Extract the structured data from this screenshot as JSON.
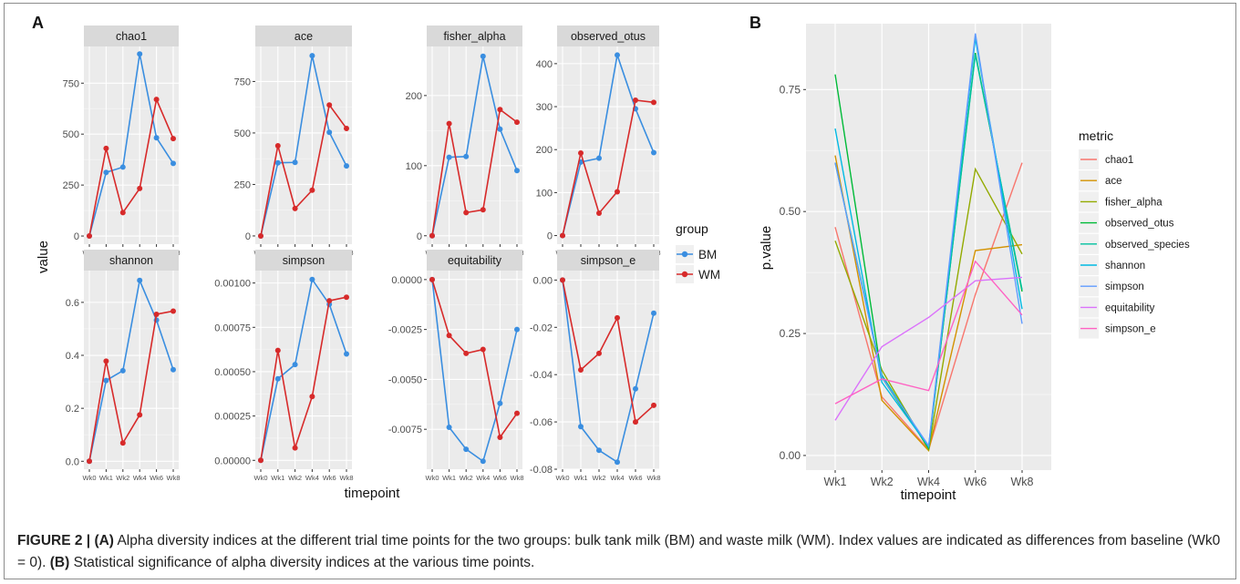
{
  "panel_a_label": "A",
  "panel_b_label": "B",
  "caption": {
    "fig_label": "FIGURE 2 |",
    "part_a_label": "(A)",
    "part_a_text": "Alpha diversity indices at the different trial time points for the two groups: bulk tank milk (BM) and waste milk (WM). Index values are indicated as differences from baseline (Wk0 = 0).",
    "part_b_label": "(B)",
    "part_b_text": "Statistical significance of alpha diversity indices at the various time points."
  },
  "chart_data": [
    {
      "type": "line",
      "panel": "A",
      "xlabel": "timepoint",
      "ylabel": "value",
      "legend_title": "group",
      "legend_position": "right",
      "grid": true,
      "categories": [
        "Wk0",
        "Wk1",
        "Wk2",
        "Wk4",
        "Wk6",
        "Wk8"
      ],
      "series_meta": [
        {
          "name": "BM",
          "color": "#3a8ee0"
        },
        {
          "name": "WM",
          "color": "#d72a2a"
        }
      ],
      "facets": [
        {
          "title": "chao1",
          "ylim": [
            -40,
            930
          ],
          "ticks": [
            0,
            250,
            500,
            750
          ],
          "tick_labels": [
            "0",
            "250",
            "500",
            "750"
          ],
          "series": [
            {
              "name": "BM",
              "values": [
                0,
                312,
                338,
                893,
                482,
                356
              ]
            },
            {
              "name": "WM",
              "values": [
                0,
                430,
                115,
                233,
                670,
                478
              ]
            }
          ]
        },
        {
          "title": "ace",
          "ylim": [
            -40,
            920
          ],
          "ticks": [
            0,
            250,
            500,
            750
          ],
          "tick_labels": [
            "0",
            "250",
            "500",
            "750"
          ],
          "series": [
            {
              "name": "BM",
              "values": [
                0,
                355,
                357,
                875,
                503,
                340
              ]
            },
            {
              "name": "WM",
              "values": [
                0,
                438,
                133,
                222,
                636,
                522
              ]
            }
          ]
        },
        {
          "title": "fisher_alpha",
          "ylim": [
            -12,
            270
          ],
          "ticks": [
            0,
            100,
            200
          ],
          "tick_labels": [
            "0",
            "100",
            "200"
          ],
          "series": [
            {
              "name": "BM",
              "values": [
                0,
                112,
                113,
                256,
                152,
                93
              ]
            },
            {
              "name": "WM",
              "values": [
                0,
                160,
                33,
                37,
                180,
                162
              ]
            }
          ]
        },
        {
          "title": "observed_otus",
          "ylim": [
            -20,
            440
          ],
          "ticks": [
            0,
            100,
            200,
            300,
            400
          ],
          "tick_labels": [
            "0",
            "100",
            "200",
            "300",
            "400"
          ],
          "series": [
            {
              "name": "BM",
              "values": [
                0,
                171,
                180,
                420,
                295,
                193
              ]
            },
            {
              "name": "WM",
              "values": [
                0,
                192,
                52,
                102,
                315,
                310
              ]
            }
          ]
        },
        {
          "title": "shannon",
          "ylim": [
            -0.03,
            0.72
          ],
          "ticks": [
            0,
            0.2,
            0.4,
            0.6
          ],
          "tick_labels": [
            "0.0",
            "0.2",
            "0.4",
            "0.6"
          ],
          "series": [
            {
              "name": "BM",
              "values": [
                0,
                0.305,
                0.342,
                0.683,
                0.533,
                0.346
              ]
            },
            {
              "name": "WM",
              "values": [
                0,
                0.378,
                0.069,
                0.175,
                0.555,
                0.567
              ]
            }
          ]
        },
        {
          "title": "simpson",
          "ylim": [
            -5e-05,
            0.00107
          ],
          "ticks": [
            0,
            0.00025,
            0.0005,
            0.00075,
            0.001
          ],
          "tick_labels": [
            "0.00000",
            "0.00025",
            "0.00050",
            "0.00075",
            "0.00100"
          ],
          "series": [
            {
              "name": "BM",
              "values": [
                0,
                0.00046,
                0.00054,
                0.00102,
                0.00088,
                0.0006
              ]
            },
            {
              "name": "WM",
              "values": [
                0,
                0.00062,
                7e-05,
                0.00036,
                0.0009,
                0.00092
              ]
            }
          ]
        },
        {
          "title": "equitability",
          "ylim": [
            -0.0095,
            0.00045
          ],
          "ticks": [
            0,
            -0.0025,
            -0.005,
            -0.0075
          ],
          "tick_labels": [
            "0.0000",
            "-0.0025",
            "-0.0050",
            "-0.0075"
          ],
          "series": [
            {
              "name": "BM",
              "values": [
                0,
                -0.0074,
                -0.0085,
                -0.0091,
                -0.0062,
                -0.0025
              ]
            },
            {
              "name": "WM",
              "values": [
                0,
                -0.0028,
                -0.0037,
                -0.0035,
                -0.0079,
                -0.0067
              ]
            }
          ]
        },
        {
          "title": "simpson_e",
          "ylim": [
            -0.08,
            0.004
          ],
          "ticks": [
            0,
            -0.02,
            -0.04,
            -0.06,
            -0.08
          ],
          "tick_labels": [
            "0.00",
            "-0.02",
            "-0.04",
            "-0.06",
            "-0.08"
          ],
          "series": [
            {
              "name": "BM",
              "values": [
                0,
                -0.062,
                -0.072,
                -0.077,
                -0.046,
                -0.014
              ]
            },
            {
              "name": "WM",
              "values": [
                0,
                -0.038,
                -0.031,
                -0.016,
                -0.06,
                -0.053
              ]
            }
          ]
        }
      ]
    },
    {
      "type": "line",
      "panel": "B",
      "xlabel": "timepoint",
      "ylabel": "p.value",
      "legend_title": "metric",
      "legend_position": "right",
      "grid": true,
      "categories": [
        "Wk1",
        "Wk2",
        "Wk4",
        "Wk6",
        "Wk8"
      ],
      "ylim": [
        -0.03,
        0.885
      ],
      "ticks": [
        0,
        0.25,
        0.5,
        0.75
      ],
      "tick_labels": [
        "0.00",
        "0.25",
        "0.50",
        "0.75"
      ],
      "series": [
        {
          "name": "chao1",
          "color": "#f8766d",
          "values": [
            0.468,
            0.12,
            0.012,
            0.33,
            0.6
          ]
        },
        {
          "name": "ace",
          "color": "#d39200",
          "values": [
            0.615,
            0.113,
            0.01,
            0.42,
            0.432
          ]
        },
        {
          "name": "fisher_alpha",
          "color": "#93aa00",
          "values": [
            0.44,
            0.175,
            0.012,
            0.587,
            0.413
          ]
        },
        {
          "name": "observed_otus",
          "color": "#00ba38",
          "values": [
            0.781,
            0.16,
            0.015,
            0.825,
            0.336
          ]
        },
        {
          "name": "observed_species",
          "color": "#00c19f",
          "values": [
            0.6,
            0.165,
            0.017,
            0.822,
            0.34
          ]
        },
        {
          "name": "shannon",
          "color": "#00b9e3",
          "values": [
            0.67,
            0.15,
            0.018,
            0.855,
            0.3
          ]
        },
        {
          "name": "simpson",
          "color": "#619cff",
          "values": [
            0.6,
            0.16,
            0.02,
            0.865,
            0.27
          ]
        },
        {
          "name": "equitability",
          "color": "#db72fb",
          "values": [
            0.072,
            0.223,
            0.283,
            0.358,
            0.365
          ]
        },
        {
          "name": "simpson_e",
          "color": "#ff61c3",
          "values": [
            0.106,
            0.157,
            0.133,
            0.398,
            0.288
          ]
        }
      ]
    }
  ]
}
